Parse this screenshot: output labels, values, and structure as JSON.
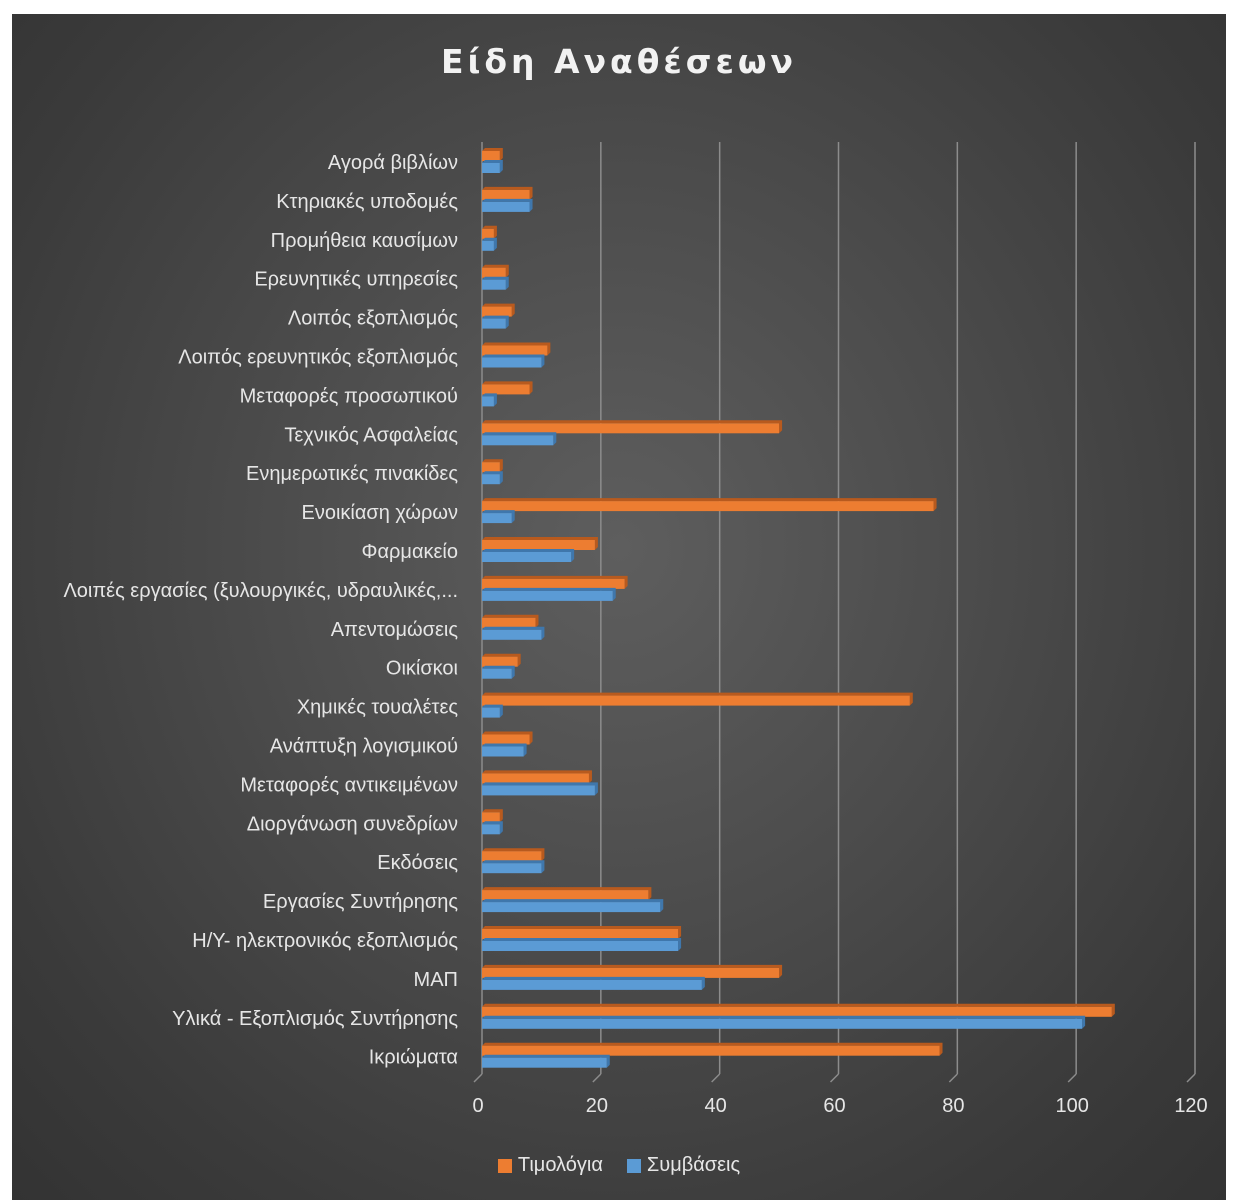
{
  "chart_data": {
    "type": "bar",
    "orientation": "horizontal",
    "title": "Είδη Αναθέσεων",
    "xlabel": "",
    "ylabel": "",
    "xlim": [
      0,
      120
    ],
    "ticks": [
      0,
      20,
      40,
      60,
      80,
      100,
      120
    ],
    "grid": true,
    "legend_position": "bottom",
    "categories": [
      "Αγορά βιβλίων",
      "Κτηριακές υποδομές",
      "Προμήθεια καυσίμων",
      "Ερευνητικές υπηρεσίες",
      "Λοιπός εξοπλισμός",
      "Λοιπός ερευνητικός εξοπλισμός",
      "Μεταφορές προσωπικού",
      "Τεχνικός Ασφαλείας",
      "Ενημερωτικές πινακίδες",
      "Ενοικίαση χώρων",
      "Φαρμακείο",
      "Λοιπές εργασίες (ξυλουργικές, υδραυλικές,...",
      "Απεντομώσεις",
      "Οικίσκοι",
      "Χημικές τουαλέτες",
      "Ανάπτυξη λογισμικού",
      "Μεταφορές αντικειμένων",
      "Διοργάνωση συνεδρίων",
      "Εκδόσεις",
      "Εργασίες Συντήρησης",
      "Η/Υ- ηλεκτρονικός εξοπλισμός",
      "ΜΑΠ",
      "Υλικά - Εξοπλισμός Συντήρησης",
      "Ικριώματα"
    ],
    "series": [
      {
        "name": "Τιμολόγια",
        "color": "#ed7d31",
        "values": [
          3,
          8,
          2,
          4,
          5,
          11,
          8,
          50,
          3,
          76,
          19,
          24,
          9,
          6,
          72,
          8,
          18,
          3,
          10,
          28,
          33,
          50,
          106,
          77
        ]
      },
      {
        "name": "Συμβάσεις",
        "color": "#5b9bd5",
        "values": [
          3,
          8,
          2,
          4,
          4,
          10,
          2,
          12,
          3,
          5,
          15,
          22,
          10,
          5,
          3,
          7,
          19,
          3,
          10,
          30,
          33,
          37,
          101,
          21
        ]
      }
    ]
  }
}
